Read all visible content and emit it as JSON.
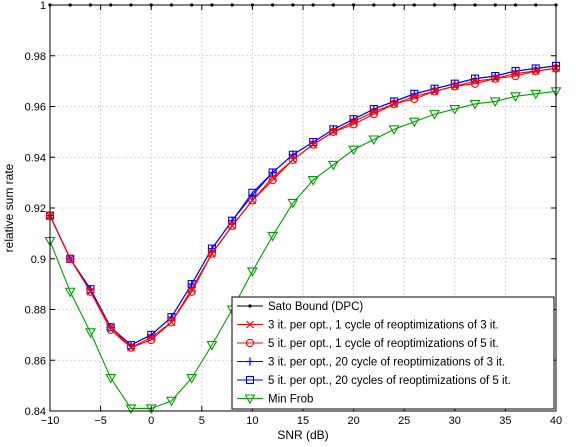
{
  "chart_data": {
    "type": "line",
    "xlabel": "SNR (dB)",
    "ylabel": "relative sum rate",
    "xlim": [
      -10,
      40
    ],
    "ylim": [
      0.84,
      1.0
    ],
    "xticks": [
      -10,
      -5,
      0,
      5,
      10,
      15,
      20,
      25,
      30,
      35,
      40
    ],
    "xtick_labels": [
      "−10",
      "−5",
      "0",
      "5",
      "10",
      "15",
      "20",
      "25",
      "30",
      "35",
      "40"
    ],
    "yticks": [
      0.84,
      0.86,
      0.88,
      0.9,
      0.92,
      0.94,
      0.96,
      0.98,
      1.0
    ],
    "ytick_labels": [
      "0.84",
      "0.86",
      "0.88",
      "0.9",
      "0.92",
      "0.94",
      "0.96",
      "0.98",
      "1"
    ],
    "grid": true,
    "legend_position": "bottom-right",
    "x": [
      -10,
      -8,
      -6,
      -4,
      -2,
      0,
      2,
      4,
      6,
      8,
      10,
      12,
      14,
      16,
      18,
      20,
      22,
      24,
      26,
      28,
      30,
      32,
      34,
      36,
      38,
      40
    ],
    "series": [
      {
        "name": "Sato Bound (DPC)",
        "color": "#000000",
        "marker": "dot",
        "values": [
          1,
          1,
          1,
          1,
          1,
          1,
          1,
          1,
          1,
          1,
          1,
          1,
          1,
          1,
          1,
          1,
          1,
          1,
          1,
          1,
          1,
          1,
          1,
          1,
          1,
          1
        ]
      },
      {
        "name": "3 it. per opt., 1 cycle of reoptimizations of 3 it.",
        "color": "#ff0000",
        "marker": "x",
        "values": [
          0.917,
          0.9,
          0.887,
          0.873,
          0.865,
          0.869,
          0.875,
          0.888,
          0.902,
          0.913,
          0.923,
          0.932,
          0.939,
          0.945,
          0.95,
          0.954,
          0.958,
          0.961,
          0.964,
          0.966,
          0.968,
          0.97,
          0.971,
          0.973,
          0.974,
          0.975
        ]
      },
      {
        "name": "5 it. per opt., 1 cycle of reoptimizations of 5 it.",
        "color": "#ff0000",
        "marker": "circle",
        "values": [
          0.917,
          0.9,
          0.887,
          0.872,
          0.865,
          0.868,
          0.875,
          0.887,
          0.902,
          0.913,
          0.923,
          0.931,
          0.939,
          0.945,
          0.95,
          0.953,
          0.957,
          0.961,
          0.963,
          0.966,
          0.968,
          0.969,
          0.971,
          0.972,
          0.974,
          0.975
        ]
      },
      {
        "name": "3 it. per opt., 20 cycle of reoptimizations of 3 it.",
        "color": "#0000ff",
        "marker": "plus",
        "values": [
          0.917,
          0.9,
          0.888,
          0.873,
          0.866,
          0.87,
          0.877,
          0.89,
          0.904,
          0.915,
          0.925,
          0.934,
          0.941,
          0.946,
          0.951,
          0.955,
          0.959,
          0.962,
          0.965,
          0.967,
          0.969,
          0.971,
          0.972,
          0.974,
          0.975,
          0.976
        ]
      },
      {
        "name": "5 it. per opt., 20 cycles of reoptimizations of 5 it.",
        "color": "#0000ff",
        "marker": "square",
        "values": [
          0.917,
          0.9,
          0.888,
          0.873,
          0.866,
          0.87,
          0.877,
          0.89,
          0.904,
          0.915,
          0.926,
          0.934,
          0.941,
          0.946,
          0.951,
          0.955,
          0.959,
          0.962,
          0.965,
          0.967,
          0.969,
          0.971,
          0.972,
          0.974,
          0.975,
          0.976
        ]
      },
      {
        "name": "Min Frob",
        "color": "#00a000",
        "marker": "triangle-down",
        "values": [
          0.907,
          0.887,
          0.871,
          0.853,
          0.841,
          0.841,
          0.844,
          0.853,
          0.866,
          0.88,
          0.895,
          0.909,
          0.922,
          0.931,
          0.937,
          0.943,
          0.947,
          0.951,
          0.954,
          0.957,
          0.959,
          0.961,
          0.962,
          0.964,
          0.965,
          0.966
        ]
      }
    ]
  }
}
